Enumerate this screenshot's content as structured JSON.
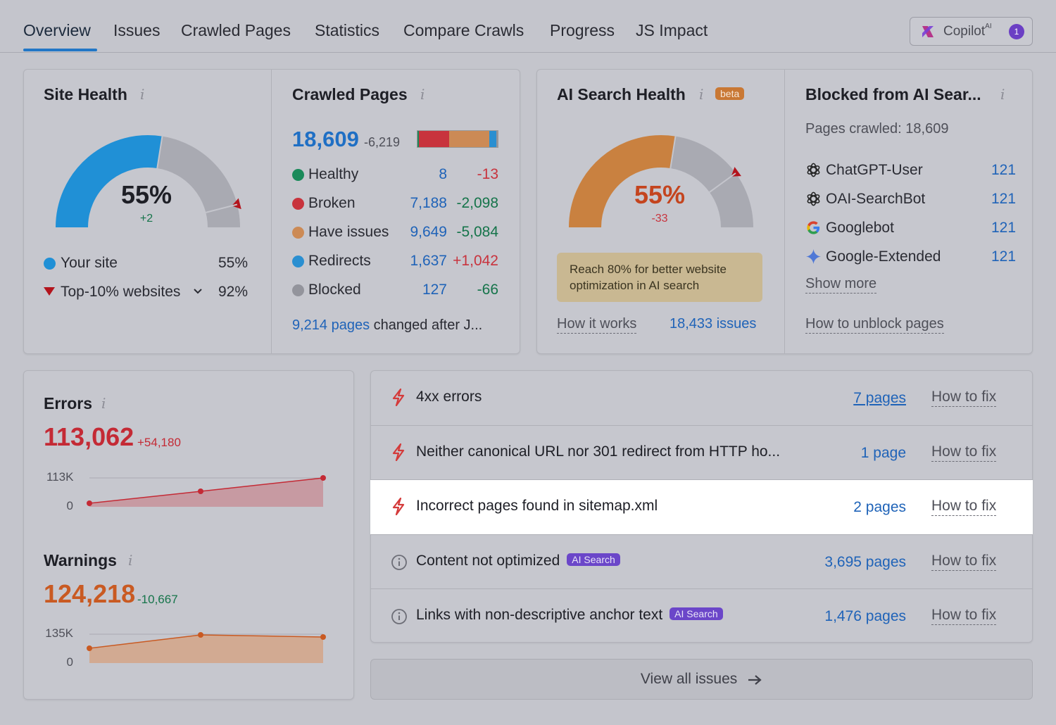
{
  "nav": {
    "tabs": [
      "Overview",
      "Issues",
      "Crawled Pages",
      "Statistics",
      "Compare Crawls",
      "Progress",
      "JS Impact"
    ],
    "copilot": {
      "label": "Copilot",
      "sup": "AI",
      "badge": "1"
    }
  },
  "site_health": {
    "title": "Site Health",
    "percent": "55%",
    "delta": "+2",
    "gauge_value": 0.55,
    "top10_value": 0.92,
    "legend": [
      {
        "label": "Your site",
        "value": "55%"
      },
      {
        "label": "Top-10% websites",
        "value": "92%"
      }
    ]
  },
  "crawled_pages": {
    "title": "Crawled Pages",
    "total": "18,609",
    "delta": "-6,219",
    "bar_colors": [
      "#c8333d",
      "#cc8a55",
      "#2a8fd1"
    ],
    "rows": [
      {
        "label": "Healthy",
        "value": "8",
        "delta": "-13",
        "color": "#1a8a5a",
        "delta_color": "#c8333d"
      },
      {
        "label": "Broken",
        "value": "7,188",
        "delta": "-2,098",
        "color": "#c8333d",
        "delta_color": "#15744a"
      },
      {
        "label": "Have issues",
        "value": "9,649",
        "delta": "-5,084",
        "color": "#cc8a55",
        "delta_color": "#15744a"
      },
      {
        "label": "Redirects",
        "value": "1,637",
        "delta": "+1,042",
        "color": "#2a8fd1",
        "delta_color": "#c8333d"
      },
      {
        "label": "Blocked",
        "value": "127",
        "delta": "-66",
        "color": "#93949c",
        "delta_color": "#15744a"
      }
    ],
    "footer_link": "9,214 pages",
    "footer_text": " changed after J..."
  },
  "ai_search_health": {
    "title": "AI Search Health",
    "badge": "beta",
    "percent": "55%",
    "delta": "-33",
    "gauge_value": 0.55,
    "tip": "Reach 80% for better website optimization in AI search",
    "how_it_works": "How it works",
    "issues_link": "18,433 issues"
  },
  "blocked": {
    "title": "Blocked from AI Sear...",
    "pages_crawled": "Pages crawled: 18,609",
    "bots": [
      {
        "name": "ChatGPT-User",
        "value": "121",
        "icon": "openai-icon"
      },
      {
        "name": "OAI-SearchBot",
        "value": "121",
        "icon": "openai-icon"
      },
      {
        "name": "Googlebot",
        "value": "121",
        "icon": "google-icon"
      },
      {
        "name": "Google-Extended",
        "value": "121",
        "icon": "gemini-icon"
      }
    ],
    "show_more": "Show more",
    "how_to_unblock": "How to unblock pages"
  },
  "errors": {
    "title": "Errors",
    "value": "113,062",
    "delta": "+54,180",
    "y_top": "113K",
    "y_bottom": "0"
  },
  "warnings": {
    "title": "Warnings",
    "value": "124,218",
    "delta": "-10,667",
    "y_top": "135K",
    "y_bottom": "0"
  },
  "issues": [
    {
      "type": "error",
      "text": "4xx errors",
      "pages": "7 pages",
      "fix": "How to fix",
      "ai": ""
    },
    {
      "type": "error",
      "text": "Neither canonical URL nor 301 redirect from HTTP ho...",
      "pages": "1 page",
      "fix": "How to fix",
      "ai": ""
    },
    {
      "type": "error",
      "text": "Incorrect pages found in sitemap.xml",
      "pages": "2 pages",
      "fix": "How to fix",
      "ai": ""
    },
    {
      "type": "notice",
      "text": "Content not optimized",
      "pages": "3,695 pages",
      "fix": "How to fix",
      "ai": "AI Search"
    },
    {
      "type": "notice",
      "text": "Links with non-descriptive anchor text",
      "pages": "1,476 pages",
      "fix": "How to fix",
      "ai": "AI Search"
    }
  ],
  "view_all": "View all issues"
}
